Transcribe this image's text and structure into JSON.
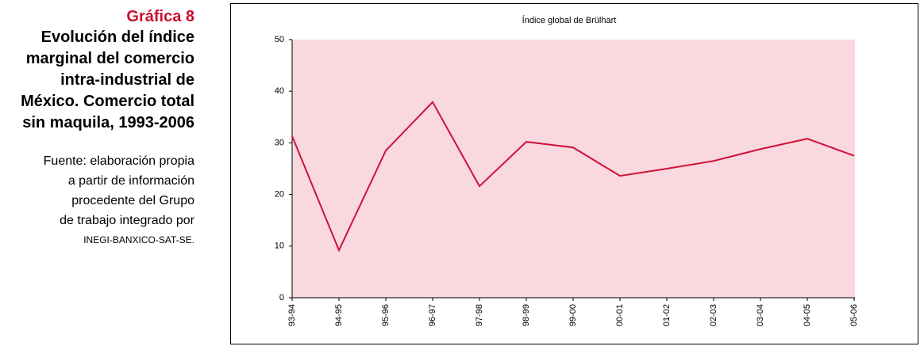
{
  "side": {
    "label": "Gráfica 8",
    "title_lines": [
      "Evolución del índice",
      "marginal del comercio",
      "intra-industrial de",
      "México. Comercio total",
      "sin maquila, 1993-2006"
    ],
    "source_lines": [
      "Fuente: elaboración propia",
      "a partir de información",
      "procedente del Grupo",
      "de trabajo integrado por",
      "INEGI-BANXICO-SAT-SE."
    ]
  },
  "chart_data": {
    "type": "line",
    "title": "Índice global de Brülhart",
    "categories": [
      "93-94",
      "94-95",
      "95-96",
      "96-97",
      "97-98",
      "98-99",
      "99-00",
      "00-01",
      "01-02",
      "02-03",
      "03-04",
      "04-05",
      "05-06"
    ],
    "values": [
      31.3,
      9.2,
      28.5,
      37.9,
      21.6,
      30.2,
      29.1,
      23.6,
      25.0,
      26.5,
      28.8,
      30.8,
      27.5
    ],
    "color": "#d0103a",
    "background": "#f9d9df",
    "ylim": [
      0,
      50
    ],
    "yticks": [
      0,
      10,
      20,
      30,
      40,
      50
    ]
  }
}
